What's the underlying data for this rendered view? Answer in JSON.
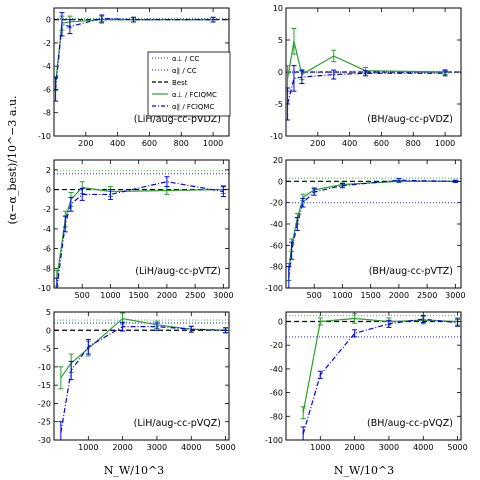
{
  "figure": {
    "ylabel": "(α−α_best)/10^−3 a.u.",
    "xlabel": "N_W/10^3"
  },
  "legend": {
    "entries": [
      {
        "label": "α⊥ / CC",
        "color": "#3a3aff",
        "style": "dotted"
      },
      {
        "label": "α∥ / CC",
        "color": "#3a3aff",
        "style": "dotted"
      },
      {
        "label": "Best",
        "color": "#000000",
        "style": "dashed"
      },
      {
        "label": "α⊥ / FCIQMC",
        "color": "#2ca02c",
        "style": "solid"
      },
      {
        "label": "α∥ / FCIQMC",
        "color": "#0000ee",
        "style": "dashdot"
      }
    ]
  },
  "colors": {
    "perp_qmc": "#2ca02c",
    "par_qmc": "#0000ee",
    "cc": "#4444ff",
    "best": "#000000",
    "perp_cc": "#55cc55"
  },
  "chart_data": [
    {
      "type": "line",
      "title": "(LiH/aug-cc-pVDZ)",
      "xlim": [
        0,
        1100
      ],
      "ylim": [
        -10,
        1
      ],
      "xticks": [
        200,
        400,
        600,
        800,
        1000
      ],
      "yticks": [
        -10,
        -8,
        -6,
        -4,
        -2,
        0
      ],
      "cc_perp": 0.1,
      "cc_par": 0.05,
      "series": [
        {
          "name": "α⊥ / FCIQMC",
          "x": [
            10,
            50,
            100,
            300,
            500,
            1000
          ],
          "y": [
            -5.5,
            -0.3,
            -0.2,
            0.0,
            0.0,
            0.0
          ],
          "err": [
            0.6,
            0.6,
            0.5,
            0.3,
            0.2,
            0.2
          ]
        },
        {
          "name": "α∥ / FCIQMC",
          "x": [
            10,
            50,
            100,
            300,
            500,
            1000
          ],
          "y": [
            -6.0,
            -0.4,
            -0.6,
            0.1,
            0.0,
            0.0
          ],
          "err": [
            1.0,
            1.0,
            0.6,
            0.3,
            0.2,
            0.2
          ]
        }
      ]
    },
    {
      "type": "line",
      "title": "(BH/aug-cc-pVDZ)",
      "xlim": [
        0,
        1100
      ],
      "ylim": [
        -10,
        10
      ],
      "xticks": [
        200,
        400,
        600,
        800,
        1000
      ],
      "yticks": [
        -10,
        -5,
        0,
        5,
        10
      ],
      "cc_perp": 0.1,
      "cc_par": -0.1,
      "series": [
        {
          "name": "α⊥ / FCIQMC",
          "x": [
            10,
            50,
            100,
            300,
            500,
            1000
          ],
          "y": [
            -1.0,
            4.8,
            -0.4,
            2.5,
            0.2,
            0.0
          ],
          "err": [
            2.0,
            2.0,
            0.8,
            0.9,
            0.5,
            0.4
          ]
        },
        {
          "name": "α∥ / FCIQMC",
          "x": [
            10,
            50,
            100,
            300,
            500,
            1000
          ],
          "y": [
            -5.0,
            -1.0,
            -0.8,
            -0.4,
            -0.2,
            -0.2
          ],
          "err": [
            2.5,
            2.0,
            1.0,
            0.7,
            0.4,
            0.4
          ]
        }
      ]
    },
    {
      "type": "line",
      "title": "(LiH/aug-cc-pVTZ)",
      "xlim": [
        0,
        3100
      ],
      "ylim": [
        -10,
        3
      ],
      "xticks": [
        500,
        1000,
        1500,
        2000,
        2500,
        3000
      ],
      "yticks": [
        -10,
        -8,
        -6,
        -4,
        -2,
        0,
        2
      ],
      "cc_perp": 1.9,
      "cc_par": 1.6,
      "series": [
        {
          "name": "α⊥ / FCIQMC",
          "x": [
            50,
            200,
            300,
            500,
            1000,
            2000,
            3000
          ],
          "y": [
            -9.0,
            -3.0,
            -1.0,
            0.2,
            -0.2,
            -0.1,
            0.0
          ],
          "err": [
            0.8,
            0.8,
            0.7,
            0.6,
            0.5,
            0.4,
            0.4
          ]
        },
        {
          "name": "α∥ / FCIQMC",
          "x": [
            50,
            200,
            300,
            500,
            1000,
            2000,
            3000
          ],
          "y": [
            -10.0,
            -3.5,
            -1.5,
            -0.5,
            -0.5,
            0.8,
            -0.2
          ],
          "err": [
            1.0,
            0.8,
            0.7,
            0.6,
            0.5,
            0.5,
            0.5
          ]
        }
      ]
    },
    {
      "type": "line",
      "title": "(BH/aug-cc-pVTZ)",
      "xlim": [
        0,
        3100
      ],
      "ylim": [
        -100,
        20
      ],
      "xticks": [
        500,
        1000,
        1500,
        2000,
        2500,
        3000
      ],
      "yticks": [
        -100,
        -80,
        -60,
        -40,
        -20,
        0,
        20
      ],
      "cc_perp": 3,
      "cc_par": -20,
      "series": [
        {
          "name": "α⊥ / FCIQMC",
          "x": [
            50,
            100,
            200,
            300,
            500,
            1000,
            2000,
            3000
          ],
          "y": [
            -85,
            -60,
            -35,
            -15,
            -8,
            -3,
            0,
            0
          ],
          "err": [
            8,
            6,
            5,
            3,
            2,
            1.5,
            1,
            1
          ]
        },
        {
          "name": "α∥ / FCIQMC",
          "x": [
            50,
            100,
            200,
            300,
            500,
            1000,
            2000,
            3000
          ],
          "y": [
            -90,
            -65,
            -40,
            -20,
            -10,
            -4,
            1,
            0
          ],
          "err": [
            10,
            8,
            6,
            4,
            3,
            2,
            1.5,
            1
          ]
        }
      ]
    },
    {
      "type": "line",
      "title": "(LiH/aug-cc-pVQZ)",
      "xlim": [
        0,
        5100
      ],
      "ylim": [
        -30,
        5
      ],
      "xticks": [
        1000,
        2000,
        3000,
        4000,
        5000
      ],
      "yticks": [
        -30,
        -25,
        -20,
        -15,
        -10,
        -5,
        0,
        5
      ],
      "cc_perp": 2.8,
      "cc_par": 2.0,
      "series": [
        {
          "name": "α⊥ / FCIQMC",
          "x": [
            200,
            500,
            1000,
            2000,
            3000,
            4000,
            5000
          ],
          "y": [
            -13,
            -9,
            -5,
            3.2,
            1.5,
            0.3,
            0.0
          ],
          "err": [
            3,
            2.5,
            2,
            1.5,
            1,
            0.8,
            0.6
          ]
        },
        {
          "name": "α∥ / FCIQMC",
          "x": [
            200,
            500,
            1000,
            2000,
            3000,
            4000,
            5000
          ],
          "y": [
            -28,
            -11,
            -4.5,
            1.0,
            1.0,
            0.3,
            0.0
          ],
          "err": [
            3,
            2.5,
            2,
            1.2,
            1,
            0.8,
            0.7
          ]
        }
      ]
    },
    {
      "type": "line",
      "title": "(BH/aug-cc-pVQZ)",
      "xlim": [
        0,
        5100
      ],
      "ylim": [
        -100,
        8
      ],
      "xticks": [
        1000,
        2000,
        3000,
        4000,
        5000
      ],
      "yticks": [
        -100,
        -80,
        -60,
        -40,
        -20,
        0
      ],
      "cc_perp": 5,
      "cc_par": -13,
      "series": [
        {
          "name": "α⊥ / FCIQMC",
          "x": [
            500,
            1000,
            2000,
            3000,
            4000,
            5000
          ],
          "y": [
            -77,
            0,
            2.5,
            0,
            1,
            0
          ],
          "err": [
            5,
            3,
            4,
            3,
            3,
            3
          ]
        },
        {
          "name": "α∥ / FCIQMC",
          "x": [
            500,
            1000,
            2000,
            3000,
            4000,
            5000
          ],
          "y": [
            -95,
            -45,
            -10,
            -2,
            2,
            -1
          ],
          "err": [
            6,
            3,
            3,
            3,
            3,
            3
          ]
        }
      ]
    }
  ]
}
